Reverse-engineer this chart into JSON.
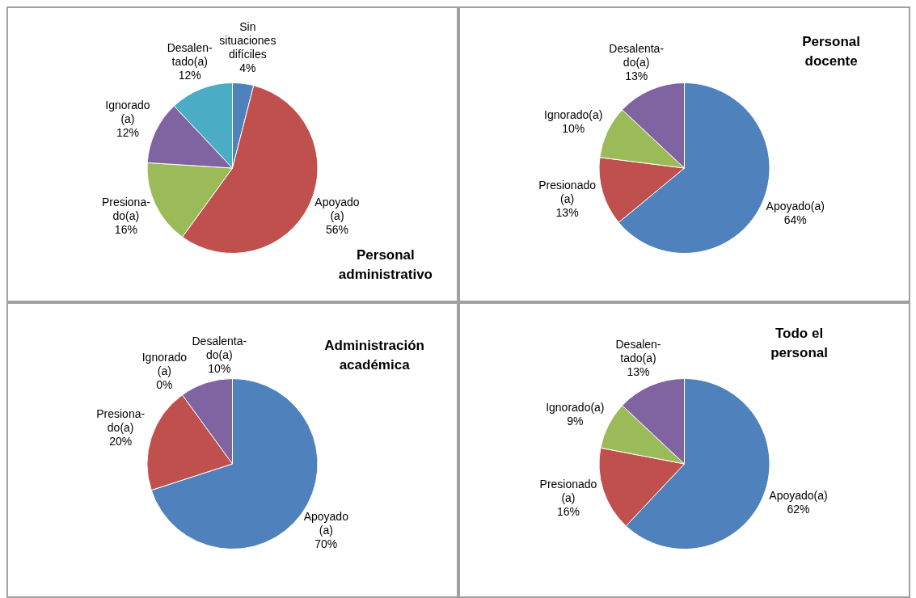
{
  "chart_data": [
    {
      "type": "pie",
      "title": "Personal\nadministrativo",
      "categories": [
        "Sin\nsituaciones\ndifíciles",
        "Apoyado\n(a)",
        "Presiona-\ndo(a)",
        "Ignorado\n(a)",
        "Desalen-\ntado(a)"
      ],
      "values": [
        4,
        56,
        16,
        12,
        12
      ],
      "value_labels": [
        "4%",
        "56%",
        "16%",
        "12%",
        "12%"
      ],
      "colors": [
        "#4f81bd",
        "#c0504d",
        "#9bbb59",
        "#8064a2",
        "#4bacc6"
      ],
      "legend": false
    },
    {
      "type": "pie",
      "title": "Personal\ndocente",
      "categories": [
        "Apoyado(a)",
        "Presionado\n(a)",
        "Ignorado(a)",
        "Desalenta-\ndo(a)"
      ],
      "values": [
        64,
        13,
        10,
        13
      ],
      "value_labels": [
        "64%",
        "13%",
        "10%",
        "13%"
      ],
      "colors": [
        "#4f81bd",
        "#c0504d",
        "#9bbb59",
        "#8064a2"
      ],
      "legend": false
    },
    {
      "type": "pie",
      "title": "Administración\nacadémica",
      "categories": [
        "Apoyado\n(a)",
        "Presiona-\ndo(a)",
        "Ignorado\n(a)",
        "Desalenta-\ndo(a)"
      ],
      "values": [
        70,
        20,
        0,
        10
      ],
      "value_labels": [
        "70%",
        "20%",
        "0%",
        "10%"
      ],
      "colors": [
        "#4f81bd",
        "#c0504d",
        "#9bbb59",
        "#8064a2"
      ],
      "legend": false
    },
    {
      "type": "pie",
      "title": "Todo el\npersonal",
      "categories": [
        "Apoyado(a)",
        "Presionado\n(a)",
        "Ignorado(a)",
        "Desalen-\ntado(a)"
      ],
      "values": [
        62,
        16,
        9,
        13
      ],
      "value_labels": [
        "62%",
        "16%",
        "9%",
        "13%"
      ],
      "colors": [
        "#4f81bd",
        "#c0504d",
        "#9bbb59",
        "#8064a2"
      ],
      "legend": false
    }
  ]
}
